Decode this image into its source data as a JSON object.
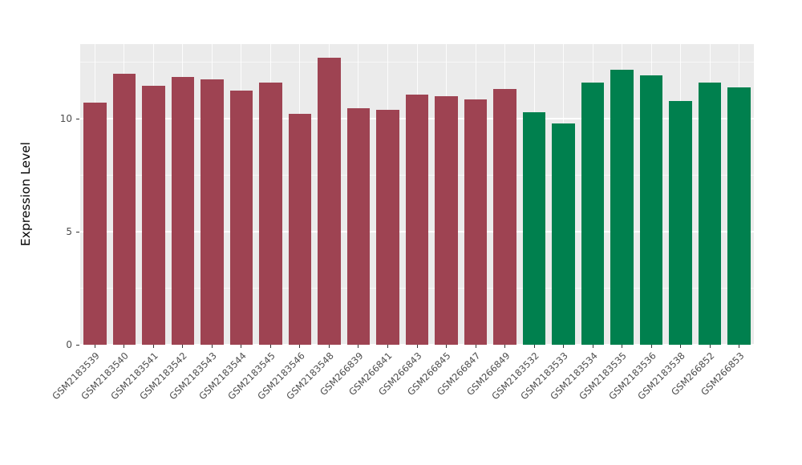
{
  "figure": {
    "background": "#FFFFFF",
    "panel_background": "#EBEBEB",
    "grid_color": "#FFFFFF",
    "tick_color": "#333333",
    "tick_label_color": "#4D4D4D"
  },
  "chart_data": {
    "type": "bar",
    "title": "",
    "xlabel": "",
    "ylabel": "Expression Level",
    "ylim": [
      0,
      13.3
    ],
    "yticks": [
      0,
      5,
      10
    ],
    "yticks_minor": [
      2.5,
      7.5,
      12.5
    ],
    "grid": true,
    "legend_position": "none",
    "group_colors": {
      "group1": "#9E4352",
      "group2": "#00804E"
    },
    "categories": [
      "GSM2183539",
      "GSM2183540",
      "GSM2183541",
      "GSM2183542",
      "GSM2183543",
      "GSM2183544",
      "GSM2183545",
      "GSM2183546",
      "GSM2183548",
      "GSM266839",
      "GSM266841",
      "GSM266843",
      "GSM266845",
      "GSM266847",
      "GSM266849",
      "GSM2183532",
      "GSM2183533",
      "GSM2183534",
      "GSM2183535",
      "GSM2183536",
      "GSM2183538",
      "GSM266852",
      "GSM266853"
    ],
    "values": [
      10.7,
      12.0,
      11.45,
      11.85,
      11.75,
      11.25,
      11.6,
      10.2,
      12.7,
      10.45,
      10.4,
      11.05,
      11.0,
      10.85,
      11.3,
      10.3,
      9.8,
      11.6,
      12.15,
      11.9,
      10.8,
      11.6,
      11.4
    ],
    "bar_groups": [
      "group1",
      "group1",
      "group1",
      "group1",
      "group1",
      "group1",
      "group1",
      "group1",
      "group1",
      "group1",
      "group1",
      "group1",
      "group1",
      "group1",
      "group1",
      "group2",
      "group2",
      "group2",
      "group2",
      "group2",
      "group2",
      "group2",
      "group2"
    ]
  }
}
